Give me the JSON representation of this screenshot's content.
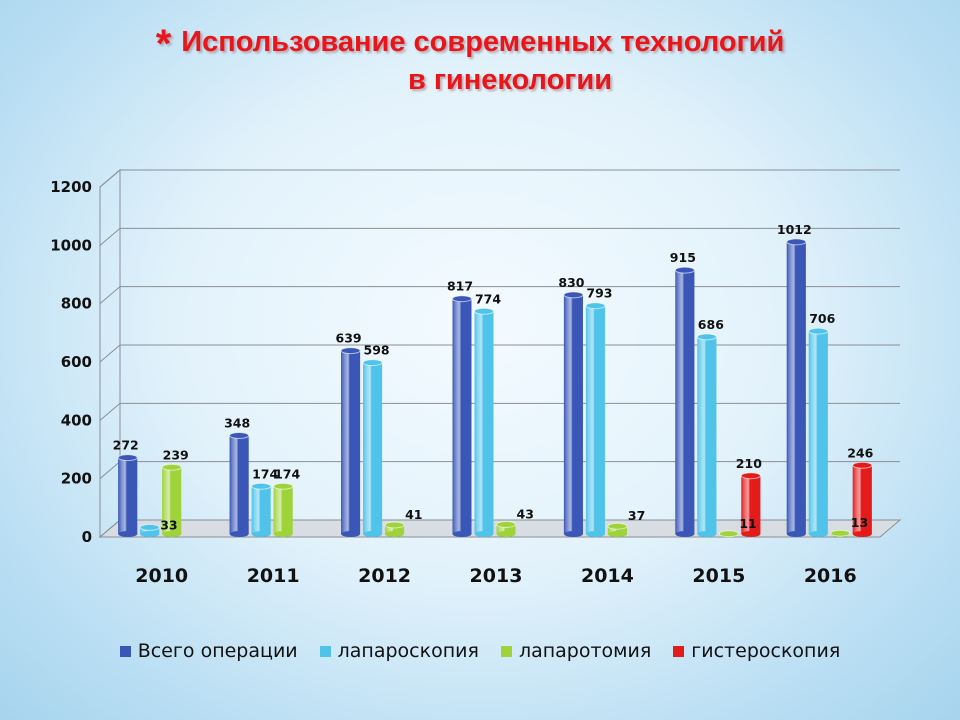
{
  "title": {
    "star": "*",
    "line1": "Использование современных технологий",
    "line2": "в гинекологии"
  },
  "chart_data": {
    "type": "bar",
    "categories": [
      "2010",
      "2011",
      "2012",
      "2013",
      "2014",
      "2015",
      "2016"
    ],
    "series": [
      {
        "name": "Всего операции",
        "color": "#3a57b8",
        "values": [
          272,
          348,
          639,
          817,
          830,
          915,
          1012
        ]
      },
      {
        "name": "лапароскопия",
        "color": "#4fc3ea",
        "values": [
          33,
          174,
          598,
          774,
          793,
          686,
          706
        ]
      },
      {
        "name": "лапаротомия",
        "color": "#9ed33a",
        "values": [
          239,
          174,
          41,
          43,
          37,
          11,
          13
        ]
      },
      {
        "name": "гистероскопия",
        "color": "#e41b1b",
        "values": [
          null,
          null,
          null,
          null,
          null,
          210,
          246
        ]
      }
    ],
    "ylim": [
      0,
      1200
    ],
    "yticks": [
      0,
      200,
      400,
      600,
      800,
      1000,
      1200
    ],
    "grid": true,
    "legend": "bottom",
    "style": "3d-cylinder"
  }
}
